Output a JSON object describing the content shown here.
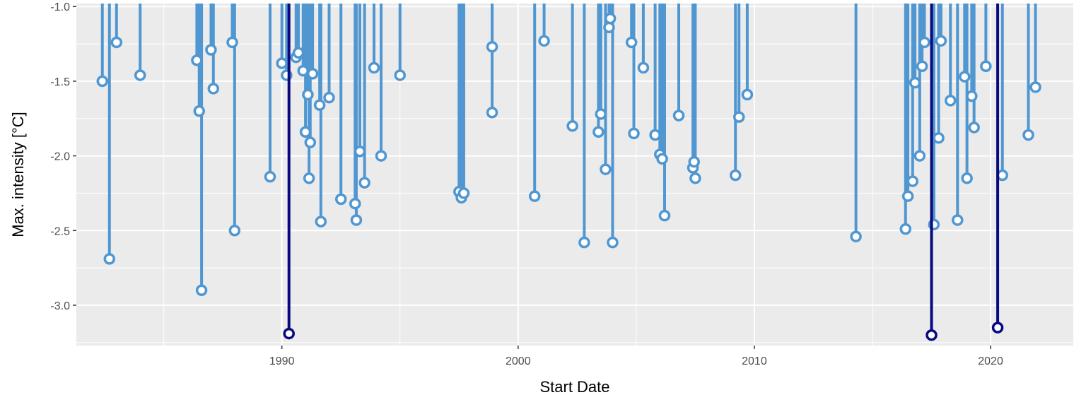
{
  "chart_data": {
    "type": "lollipop",
    "xlabel": "Start Date",
    "ylabel": "Max. intensity [°C]",
    "xlim": [
      1981.3,
      2023.5
    ],
    "ylim": [
      -3.27,
      -0.98
    ],
    "x_ticks": [
      1990,
      2000,
      2010,
      2020
    ],
    "x_tick_labels": [
      "1990",
      "2000",
      "2010",
      "2020"
    ],
    "y_ticks": [
      -1.0,
      -1.5,
      -2.0,
      -2.5,
      -3.0
    ],
    "y_tick_labels": [
      "-1.0",
      "-1.5",
      "-2.0",
      "-2.5",
      "-3.0"
    ],
    "grid": true,
    "baseline": -1.0,
    "colors": {
      "panel": "#ebebeb",
      "grid": "#ffffff",
      "stem": "#5097d1",
      "highlight": "#0a0a80",
      "marker_fill": "#ffffff",
      "axis_text": "#4d4d4d"
    },
    "series": [
      {
        "role": "events",
        "points": [
          {
            "x": 1982.4,
            "y": -1.5
          },
          {
            "x": 1982.7,
            "y": -2.69
          },
          {
            "x": 1983.0,
            "y": -1.24
          },
          {
            "x": 1984.0,
            "y": -1.46
          },
          {
            "x": 1986.4,
            "y": -1.36
          },
          {
            "x": 1986.5,
            "y": -1.7
          },
          {
            "x": 1986.6,
            "y": -2.9
          },
          {
            "x": 1987.0,
            "y": -1.29
          },
          {
            "x": 1987.1,
            "y": -1.55
          },
          {
            "x": 1987.9,
            "y": -1.24
          },
          {
            "x": 1988.0,
            "y": -2.5
          },
          {
            "x": 1989.5,
            "y": -2.14
          },
          {
            "x": 1990.0,
            "y": -1.38
          },
          {
            "x": 1990.2,
            "y": -1.46
          },
          {
            "x": 1990.6,
            "y": -1.34
          },
          {
            "x": 1990.7,
            "y": -1.31
          },
          {
            "x": 1990.9,
            "y": -1.43
          },
          {
            "x": 1991.0,
            "y": -1.84
          },
          {
            "x": 1991.1,
            "y": -1.59
          },
          {
            "x": 1991.15,
            "y": -2.15
          },
          {
            "x": 1991.2,
            "y": -1.91
          },
          {
            "x": 1991.3,
            "y": -1.45
          },
          {
            "x": 1991.6,
            "y": -1.66
          },
          {
            "x": 1991.65,
            "y": -2.44
          },
          {
            "x": 1992.0,
            "y": -1.61
          },
          {
            "x": 1992.5,
            "y": -2.29
          },
          {
            "x": 1993.1,
            "y": -2.32
          },
          {
            "x": 1993.15,
            "y": -2.43
          },
          {
            "x": 1993.3,
            "y": -1.97
          },
          {
            "x": 1993.5,
            "y": -2.18
          },
          {
            "x": 1993.9,
            "y": -1.41
          },
          {
            "x": 1994.2,
            "y": -2.0
          },
          {
            "x": 1995.0,
            "y": -1.46
          },
          {
            "x": 1997.5,
            "y": -2.24
          },
          {
            "x": 1997.6,
            "y": -2.28
          },
          {
            "x": 1997.7,
            "y": -2.25
          },
          {
            "x": 1998.9,
            "y": -1.71
          },
          {
            "x": 1998.9,
            "y": -1.27
          },
          {
            "x": 2000.7,
            "y": -2.27
          },
          {
            "x": 2001.1,
            "y": -1.23
          },
          {
            "x": 2002.3,
            "y": -1.8
          },
          {
            "x": 2002.8,
            "y": -2.58
          },
          {
            "x": 2003.4,
            "y": -1.84
          },
          {
            "x": 2003.5,
            "y": -1.72
          },
          {
            "x": 2003.7,
            "y": -2.09
          },
          {
            "x": 2003.85,
            "y": -1.14
          },
          {
            "x": 2003.9,
            "y": -1.08
          },
          {
            "x": 2004.0,
            "y": -2.58
          },
          {
            "x": 2004.8,
            "y": -1.24
          },
          {
            "x": 2004.9,
            "y": -1.85
          },
          {
            "x": 2005.3,
            "y": -1.41
          },
          {
            "x": 2005.8,
            "y": -1.86
          },
          {
            "x": 2006.0,
            "y": -1.99
          },
          {
            "x": 2006.1,
            "y": -2.02
          },
          {
            "x": 2006.2,
            "y": -2.4
          },
          {
            "x": 2006.8,
            "y": -1.73
          },
          {
            "x": 2007.4,
            "y": -2.08
          },
          {
            "x": 2007.45,
            "y": -2.04
          },
          {
            "x": 2007.5,
            "y": -2.15
          },
          {
            "x": 2009.2,
            "y": -2.13
          },
          {
            "x": 2009.35,
            "y": -1.74
          },
          {
            "x": 2009.7,
            "y": -1.59
          },
          {
            "x": 2014.3,
            "y": -2.54
          },
          {
            "x": 2016.4,
            "y": -2.49
          },
          {
            "x": 2016.5,
            "y": -2.27
          },
          {
            "x": 2016.7,
            "y": -2.17
          },
          {
            "x": 2016.8,
            "y": -1.51
          },
          {
            "x": 2017.0,
            "y": -2.0
          },
          {
            "x": 2017.1,
            "y": -1.4
          },
          {
            "x": 2017.2,
            "y": -1.24
          },
          {
            "x": 2017.6,
            "y": -2.46
          },
          {
            "x": 2017.8,
            "y": -1.88
          },
          {
            "x": 2017.9,
            "y": -1.23
          },
          {
            "x": 2018.3,
            "y": -1.63
          },
          {
            "x": 2018.6,
            "y": -2.43
          },
          {
            "x": 2018.9,
            "y": -1.47
          },
          {
            "x": 2019.0,
            "y": -2.15
          },
          {
            "x": 2019.2,
            "y": -1.6
          },
          {
            "x": 2019.3,
            "y": -1.81
          },
          {
            "x": 2019.8,
            "y": -1.4
          },
          {
            "x": 2020.5,
            "y": -2.13
          },
          {
            "x": 2021.6,
            "y": -1.86
          },
          {
            "x": 2021.9,
            "y": -1.54
          }
        ]
      },
      {
        "role": "highlighted events",
        "points": [
          {
            "x": 1990.3,
            "y": -3.19
          },
          {
            "x": 2017.5,
            "y": -3.2
          },
          {
            "x": 2020.3,
            "y": -3.15
          }
        ]
      }
    ]
  }
}
